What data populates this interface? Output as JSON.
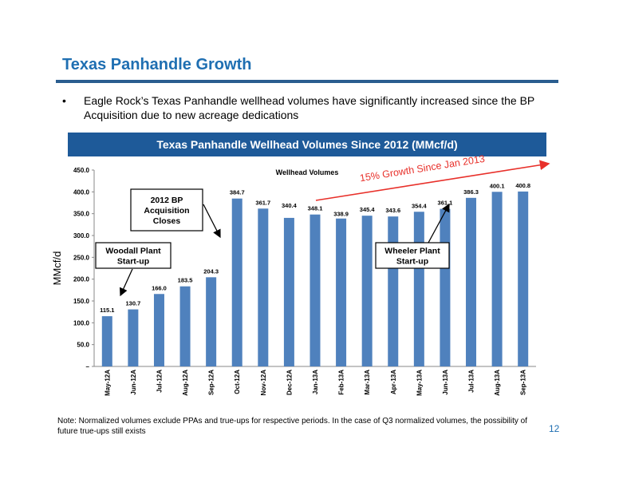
{
  "slide": {
    "title": "Texas Panhandle Growth",
    "bullet_marker": "•",
    "bullet": "Eagle Rock’s Texas Panhandle wellhead volumes have significantly increased since the BP Acquisition due to new acreage dedications",
    "chart_banner": "Texas Panhandle Wellhead Volumes Since 2012 (MMcf/d)",
    "footnote": "Note:  Normalized volumes exclude PPAs and true-ups for respective periods. In the case of Q3 normalized volumes, the possibility of future true-ups still exists",
    "page_number": "12"
  },
  "colors": {
    "title": "#1f6fb2",
    "banner": "#1e5a99",
    "bar": "#4f81bd",
    "growth": "#e8302a"
  },
  "chart_data": {
    "type": "bar",
    "title": "Wellhead Volumes",
    "xlabel": "",
    "ylabel": "MMcf/d",
    "categories": [
      "May-12A",
      "Jun-12A",
      "Jul-12A",
      "Aug-12A",
      "Sep-12A",
      "Oct-12A",
      "Nov-12A",
      "Dec-12A",
      "Jan-13A",
      "Feb-13A",
      "Mar-13A",
      "Apr-13A",
      "May-13A",
      "Jun-13A",
      "Jul-13A",
      "Aug-13A",
      "Sep-13A"
    ],
    "values": [
      115.1,
      130.7,
      166.0,
      183.5,
      204.3,
      384.7,
      361.7,
      340.4,
      348.1,
      338.9,
      345.4,
      343.6,
      354.4,
      361.1,
      386.3,
      400.1,
      400.8
    ],
    "value_labels": [
      "115.1",
      "130.7",
      "166.0",
      "183.5",
      "204.3",
      "384.7",
      "361.7",
      "340.4",
      "348.1",
      "338.9",
      "345.4",
      "343.6",
      "354.4",
      "361.1",
      "386.3",
      "400.1",
      "400.8"
    ],
    "ylim": [
      0,
      450
    ],
    "yticks": [
      0,
      50,
      100,
      150,
      200,
      250,
      300,
      350,
      400,
      450
    ],
    "ytick_labels": [
      "–",
      "50.0",
      "100.0",
      "150.0",
      "200.0",
      "250.0",
      "300.0",
      "350.0",
      "400.0",
      "450.0"
    ],
    "grid": false,
    "annotations": {
      "woodall": "Woodall Plant\nStart-up",
      "bp": "2012 BP\nAcquisition\nCloses",
      "wheeler": "Wheeler Plant\nStart-up",
      "growth": "15% Growth Since Jan 2013"
    }
  }
}
